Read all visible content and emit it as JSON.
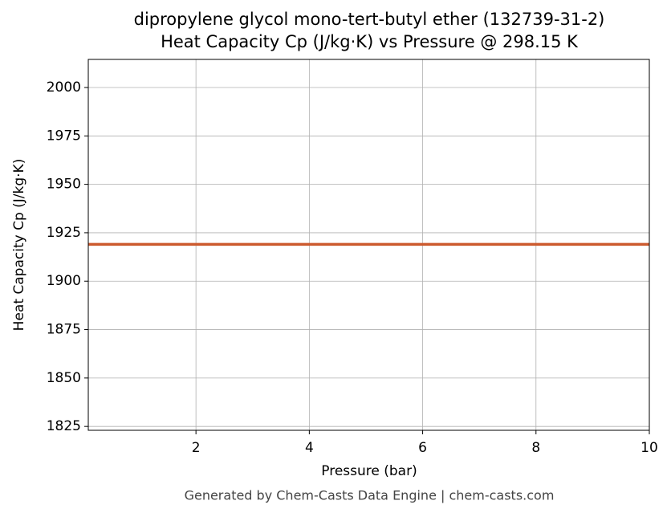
{
  "chart_data": {
    "type": "line",
    "title": "dipropylene glycol mono-tert-butyl ether (132739-31-2)",
    "subtitle": "Heat Capacity Cp (J/kg·K) vs Pressure @ 298.15 K",
    "x_label": "Pressure (bar)",
    "y_label": "Heat Capacity Cp (J/kg·K)",
    "footer": "Generated by Chem-Casts Data Engine | chem-casts.com",
    "x": [
      0.1,
      2,
      4,
      6,
      8,
      10
    ],
    "series": [
      {
        "name": "Cp",
        "color": "#cc5a2e",
        "values": [
          1919,
          1919,
          1919,
          1919,
          1919,
          1919
        ]
      }
    ],
    "xlim": [
      0.1,
      10
    ],
    "xticks": [
      2,
      4,
      6,
      8,
      10
    ],
    "ylim": [
      1823,
      2014.5
    ],
    "yticks": [
      1825,
      1850,
      1875,
      1900,
      1925,
      1950,
      1975,
      2000
    ],
    "grid": true
  }
}
